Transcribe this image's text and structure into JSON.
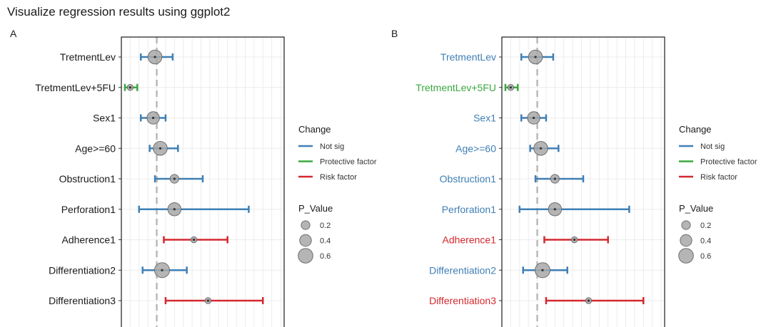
{
  "page_title": "Visualize regression results using ggplot2",
  "colors": {
    "not_sig": "#3f7fb5",
    "protective": "#3aa83f",
    "risk": "#d4282e",
    "point_fill": "#a8a8a8",
    "point_stroke": "#6e6e6e",
    "ref_line": "#b9b9b9",
    "grid": "#ececec",
    "panel_border": "#1a1a1a",
    "plain_text": "#1a1a1a"
  },
  "legend": {
    "change_title": "Change",
    "change_items": [
      {
        "label": "Not sig",
        "key": "not_sig"
      },
      {
        "label": "Protective factor",
        "key": "protective"
      },
      {
        "label": "Risk factor",
        "key": "risk"
      }
    ],
    "pvalue_title": "P_Value",
    "pvalue_items": [
      {
        "label": "0.2",
        "value": 0.2
      },
      {
        "label": "0.4",
        "value": 0.4
      },
      {
        "label": "0.6",
        "value": 0.6
      }
    ]
  },
  "chart_data": [
    {
      "panel": "A",
      "type": "forest",
      "xlabel": "",
      "ylabel": "",
      "xlim": [
        0,
        4.6
      ],
      "ref_value": 1,
      "label_coloring": "plain",
      "rows": [
        {
          "label": "TretmentLev",
          "estimate": 0.95,
          "lower": 0.55,
          "upper": 1.45,
          "change": "not_sig",
          "p_value": 0.55
        },
        {
          "label": "TretmentLev+5FU",
          "estimate": 0.25,
          "lower": 0.1,
          "upper": 0.45,
          "change": "protective",
          "p_value": 0.02
        },
        {
          "label": "Sex1",
          "estimate": 0.9,
          "lower": 0.55,
          "upper": 1.25,
          "change": "not_sig",
          "p_value": 0.45
        },
        {
          "label": "Age>=60",
          "estimate": 1.1,
          "lower": 0.8,
          "upper": 1.6,
          "change": "not_sig",
          "p_value": 0.55
        },
        {
          "label": "Obstruction1",
          "estimate": 1.5,
          "lower": 0.95,
          "upper": 2.3,
          "change": "not_sig",
          "p_value": 0.2
        },
        {
          "label": "Perforation1",
          "estimate": 1.5,
          "lower": 0.5,
          "upper": 3.6,
          "change": "not_sig",
          "p_value": 0.5
        },
        {
          "label": "Adherence1",
          "estimate": 2.05,
          "lower": 1.2,
          "upper": 3.0,
          "change": "risk",
          "p_value": 0.02
        },
        {
          "label": "Differentiation2",
          "estimate": 1.15,
          "lower": 0.6,
          "upper": 1.85,
          "change": "not_sig",
          "p_value": 0.62
        },
        {
          "label": "Differentiation3",
          "estimate": 2.45,
          "lower": 1.25,
          "upper": 4.0,
          "change": "risk",
          "p_value": 0.02
        }
      ]
    },
    {
      "panel": "B",
      "type": "forest",
      "xlabel": "",
      "ylabel": "",
      "xlim": [
        0,
        4.6
      ],
      "ref_value": 1,
      "label_coloring": "by_change",
      "rows": [
        {
          "label": "TretmentLev",
          "estimate": 0.95,
          "lower": 0.55,
          "upper": 1.45,
          "change": "not_sig",
          "p_value": 0.55
        },
        {
          "label": "TretmentLev+5FU",
          "estimate": 0.25,
          "lower": 0.1,
          "upper": 0.45,
          "change": "protective",
          "p_value": 0.02
        },
        {
          "label": "Sex1",
          "estimate": 0.9,
          "lower": 0.55,
          "upper": 1.25,
          "change": "not_sig",
          "p_value": 0.45
        },
        {
          "label": "Age>=60",
          "estimate": 1.1,
          "lower": 0.8,
          "upper": 1.6,
          "change": "not_sig",
          "p_value": 0.55
        },
        {
          "label": "Obstruction1",
          "estimate": 1.5,
          "lower": 0.95,
          "upper": 2.3,
          "change": "not_sig",
          "p_value": 0.2
        },
        {
          "label": "Perforation1",
          "estimate": 1.5,
          "lower": 0.5,
          "upper": 3.6,
          "change": "not_sig",
          "p_value": 0.5
        },
        {
          "label": "Adherence1",
          "estimate": 2.05,
          "lower": 1.2,
          "upper": 3.0,
          "change": "risk",
          "p_value": 0.02
        },
        {
          "label": "Differentiation2",
          "estimate": 1.15,
          "lower": 0.6,
          "upper": 1.85,
          "change": "not_sig",
          "p_value": 0.62
        },
        {
          "label": "Differentiation3",
          "estimate": 2.45,
          "lower": 1.25,
          "upper": 4.0,
          "change": "risk",
          "p_value": 0.02
        }
      ]
    }
  ]
}
